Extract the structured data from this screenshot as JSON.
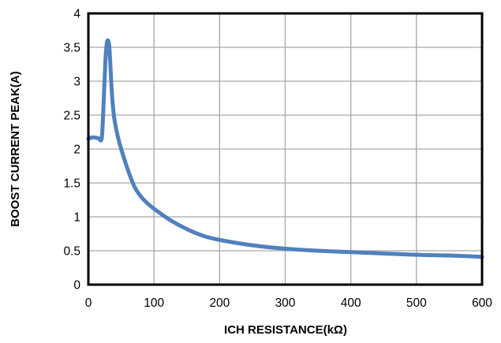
{
  "chart_data": {
    "type": "line",
    "title": "",
    "xlabel": "ICH RESISTANCE(kΩ)",
    "ylabel": "BOOST CURRENT PEAK(A)",
    "xlim": [
      0,
      600
    ],
    "ylim": [
      0,
      4
    ],
    "xticks": [
      "0",
      "100",
      "200",
      "300",
      "400",
      "500",
      "600"
    ],
    "yticks": [
      "0",
      "0.5",
      "1",
      "1.5",
      "2",
      "2.5",
      "3",
      "3.5",
      "4"
    ],
    "grid": true,
    "legend": "none",
    "series": [
      {
        "color": "#4f81bd",
        "x": [
          0,
          5,
          10,
          15,
          20,
          22,
          24,
          26,
          28,
          30,
          32,
          34,
          36,
          38,
          40,
          45,
          50,
          60,
          70,
          80,
          90,
          100,
          125,
          150,
          175,
          200,
          250,
          300,
          350,
          400,
          450,
          500,
          550,
          600
        ],
        "y": [
          2.15,
          2.17,
          2.17,
          2.16,
          2.14,
          2.4,
          2.85,
          3.3,
          3.55,
          3.6,
          3.5,
          3.15,
          2.8,
          2.58,
          2.42,
          2.18,
          2.0,
          1.7,
          1.45,
          1.3,
          1.2,
          1.12,
          0.95,
          0.82,
          0.72,
          0.66,
          0.58,
          0.53,
          0.5,
          0.48,
          0.46,
          0.44,
          0.43,
          0.41
        ]
      }
    ]
  }
}
